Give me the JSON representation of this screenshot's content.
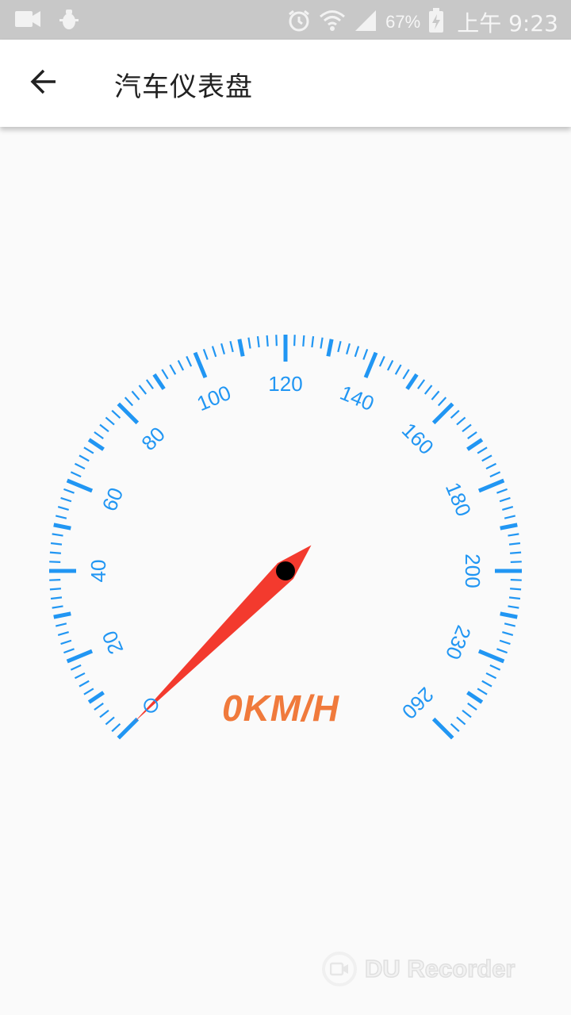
{
  "status_bar": {
    "battery_percent": "67%",
    "time": "上午 9:23",
    "icons": [
      "video-camera-icon",
      "usb-debug-icon",
      "alarm-icon",
      "wifi-icon",
      "signal-icon",
      "battery-charging-icon"
    ]
  },
  "app_bar": {
    "title": "汽车仪表盘",
    "back_icon": "arrow-left-icon"
  },
  "gauge": {
    "min": 0,
    "max": 260,
    "labels": [
      "20",
      "40",
      "60",
      "80",
      "100",
      "120",
      "140",
      "160",
      "180",
      "200",
      "230",
      "260"
    ],
    "current_speed": 0,
    "speed_text": "0KM/H",
    "tick_color": "#2196f3",
    "needle_color": "#f33a2e",
    "hub_color": "#000000",
    "speed_text_color": "#f07a3c"
  },
  "watermark": {
    "text": "DU Recorder"
  }
}
